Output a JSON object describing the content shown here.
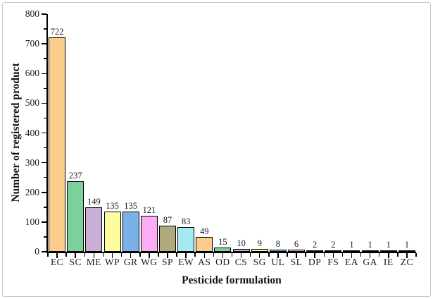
{
  "window": {
    "background": "#ffffff",
    "frame_border_color": "#c9c9c9"
  },
  "chart_data": {
    "type": "bar",
    "title": "",
    "xlabel": "Pesticide formulation",
    "ylabel": "Number of registered product",
    "categories": [
      "EC",
      "SC",
      "ME",
      "WP",
      "GR",
      "WG",
      "SP",
      "EW",
      "AS",
      "OD",
      "CS",
      "SG",
      "UL",
      "SL",
      "DP",
      "FS",
      "EA",
      "GA",
      "IE",
      "ZC"
    ],
    "values": [
      722,
      237,
      149,
      135,
      135,
      121,
      87,
      83,
      49,
      15,
      10,
      9,
      8,
      6,
      2,
      2,
      1,
      1,
      1,
      1
    ],
    "value_labels": [
      "722",
      "237",
      "149",
      "135",
      "135",
      "121",
      "87",
      "83",
      "49",
      "15",
      "10",
      "9",
      "8",
      "6",
      "2",
      "2",
      "1",
      "1",
      "1",
      "1"
    ],
    "palette": [
      "#FBCC8B",
      "#7BD09B",
      "#C9AFD5",
      "#FCFC9F",
      "#7BB1E9",
      "#FBACF2",
      "#AFA97C",
      "#A6E9EE"
    ],
    "bar_edge_color": "#000000",
    "axis_color": "#000000",
    "text_color": "#1a1a1a",
    "ylim": [
      0,
      800
    ],
    "yticks": [
      0,
      100,
      200,
      300,
      400,
      500,
      600,
      700,
      800
    ],
    "y_minor_interval": 50,
    "grid": false,
    "legend": "none",
    "value_labels_shown": true
  }
}
